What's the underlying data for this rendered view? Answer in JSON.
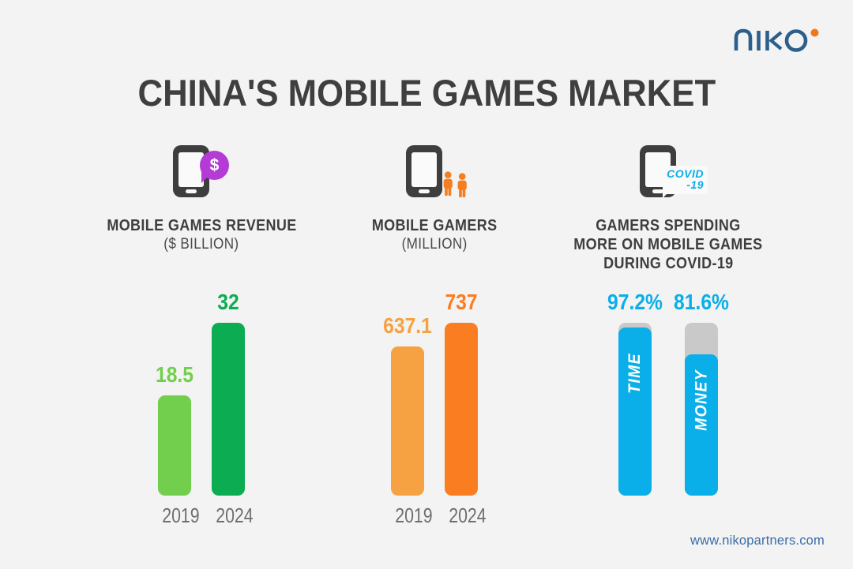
{
  "title": "CHINA'S MOBILE GAMES MARKET",
  "logo": {
    "text": "niko"
  },
  "footer": {
    "url": "www.nikopartners.com"
  },
  "colors": {
    "background": "#F2F3F2",
    "title_text": "#3F3F3F",
    "green_light": "#72CF4D",
    "green_dark": "#0BAC52",
    "orange_light": "#F6A142",
    "orange_dark": "#FB7D22",
    "cyan": "#0AAEE8",
    "bubble_purple": "#B43BD6",
    "people_orange": "#F57E20",
    "track_gray": "#C9C9C9",
    "year_text": "#6E6E6E",
    "logo_blue": "#2C5F8C",
    "logo_dot_orange": "#F07818",
    "link_blue": "#3A6CA8"
  },
  "columns": [
    {
      "icon": "phone-dollar-bubble-icon",
      "badge_symbol": "$",
      "label_lines": [
        "MOBILE GAMES REVENUE"
      ],
      "sublabel": "($ BILLION)"
    },
    {
      "icon": "phone-gamers-icon",
      "label_lines": [
        "MOBILE GAMERS"
      ],
      "sublabel": "(MILLION)"
    },
    {
      "icon": "phone-covid-icon",
      "covid_lines": [
        "COVID",
        "-19"
      ],
      "label_lines": [
        "GAMERS SPENDING",
        "MORE ON MOBILE GAMES",
        "DURING COVID-19"
      ]
    }
  ],
  "chart_data": [
    {
      "type": "bar",
      "title": "MOBILE GAMES REVENUE ($ BILLION)",
      "categories": [
        "2019",
        "2024"
      ],
      "values": [
        18.5,
        32
      ],
      "value_labels": [
        "18.5",
        "32"
      ],
      "bar_colors": [
        "#72CF4D",
        "#0BAC52"
      ],
      "ylim": [
        0,
        32
      ],
      "grid": false,
      "legend": "none"
    },
    {
      "type": "bar",
      "title": "MOBILE GAMERS (MILLION)",
      "categories": [
        "2019",
        "2024"
      ],
      "values": [
        637.1,
        737
      ],
      "value_labels": [
        "637.1",
        "737"
      ],
      "bar_colors": [
        "#F6A142",
        "#FB7D22"
      ],
      "ylim": [
        0,
        737
      ],
      "grid": false,
      "legend": "none"
    },
    {
      "type": "bar",
      "title": "GAMERS SPENDING MORE ON MOBILE GAMES DURING COVID-19",
      "categories": [
        "TIME",
        "MONEY"
      ],
      "values": [
        97.2,
        81.6
      ],
      "value_labels": [
        "97.2%",
        "81.6%"
      ],
      "bar_colors": [
        "#0AAEE8",
        "#0AAEE8"
      ],
      "track_color": "#C9C9C9",
      "ylim": [
        0,
        100
      ],
      "unit": "percent",
      "grid": false,
      "legend": "none"
    }
  ]
}
